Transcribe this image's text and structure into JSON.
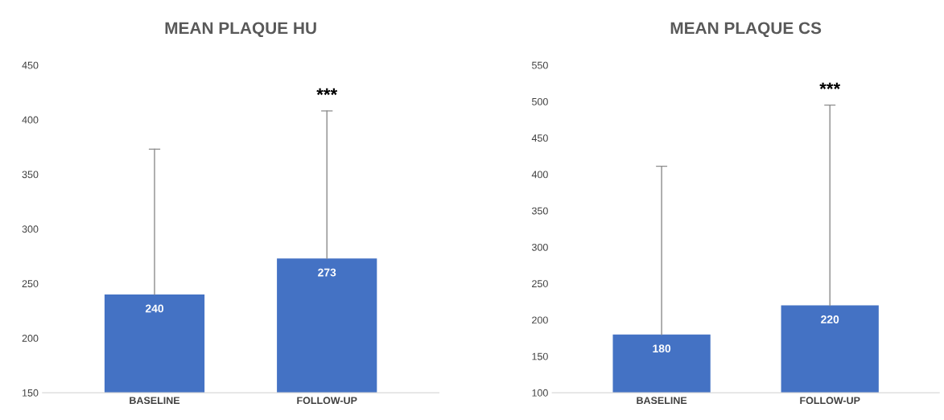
{
  "chart_data": [
    {
      "type": "bar",
      "title": "MEAN PLAQUE HU",
      "categories": [
        "BASELINE",
        "FOLLOW-UP"
      ],
      "values": [
        240,
        273
      ],
      "color": "#4472c4",
      "errors": [
        [
          240,
          373
        ],
        [
          273,
          408
        ]
      ],
      "ylim": [
        150,
        450
      ],
      "yticks": [
        150,
        200,
        250,
        300,
        350,
        400,
        450
      ],
      "grid": false,
      "data_labels": true,
      "annotations": [
        {
          "text": "***",
          "x": "FOLLOW-UP",
          "y": 408
        }
      ]
    },
    {
      "type": "bar",
      "title": "MEAN PLAQUE CS",
      "categories": [
        "BASELINE",
        "FOLLOW-UP"
      ],
      "values": [
        180,
        220
      ],
      "color": "#4472c4",
      "errors": [
        [
          180,
          411
        ],
        [
          220,
          495
        ]
      ],
      "ylim": [
        100,
        550
      ],
      "yticks": [
        100,
        150,
        200,
        250,
        300,
        350,
        400,
        450,
        500,
        550
      ],
      "grid": false,
      "data_labels": true,
      "annotations": [
        {
          "text": "***",
          "x": "FOLLOW-UP",
          "y": 495
        }
      ]
    }
  ]
}
